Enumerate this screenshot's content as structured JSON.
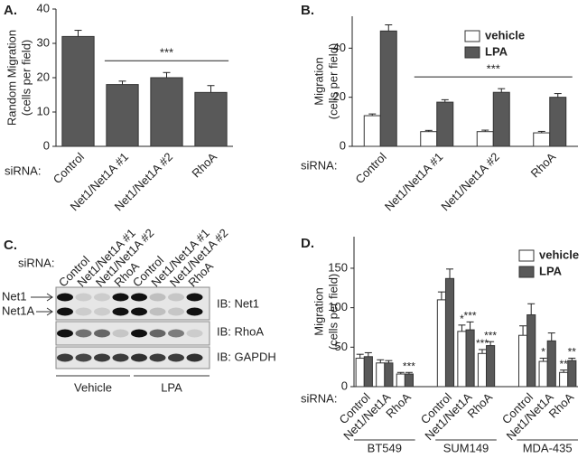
{
  "chart_data": [
    {
      "type": "bar",
      "panel_label": "A.",
      "y_label": [
        "Random Migration",
        "(cells per field)"
      ],
      "x_prefix": "siRNA:",
      "categories": [
        "Control",
        "Net1/Net1A #1",
        "Net1/Net1A #2",
        "RhoA"
      ],
      "values": [
        32,
        18,
        20,
        15.7
      ],
      "errors": [
        1.8,
        1,
        1.5,
        2
      ],
      "color": "#595959",
      "ylim": [
        0,
        40
      ],
      "yticks": [
        0,
        10,
        20,
        30,
        40
      ],
      "annotation": "***"
    },
    {
      "type": "bar",
      "panel_label": "B.",
      "y_label": [
        "Migration",
        "(cells per field)"
      ],
      "x_prefix": "siRNA:",
      "categories": [
        "Control",
        "Net1/Net1A #1",
        "Net1/Net1A #2",
        "RhoA"
      ],
      "series": [
        {
          "name": "vehicle",
          "color": "#ffffff",
          "values": [
            12.5,
            6,
            6,
            5.5
          ],
          "errors": [
            0.7,
            0.5,
            0.6,
            0.6
          ]
        },
        {
          "name": "LPA",
          "color": "#595959",
          "values": [
            47,
            18,
            22,
            20
          ],
          "errors": [
            2.5,
            1,
            1.5,
            1.5
          ]
        }
      ],
      "ylim": [
        0,
        53
      ],
      "yticks": [
        0,
        20,
        40
      ],
      "annotation": "***",
      "legend": "upper right"
    },
    {
      "type": "bar",
      "panel_label": "D.",
      "y_label": [
        "Migration",
        "(cells per field)"
      ],
      "x_prefix": "siRNA:",
      "categories": [
        "Control",
        "Net1/Net1A",
        "RhoA",
        "Control",
        "Net1/Net1A",
        "RhoA",
        "Control",
        "Net1/Net1A",
        "RhoA"
      ],
      "groups": [
        "BT549",
        "SUM149",
        "MDA-435"
      ],
      "series": [
        {
          "name": "vehicle",
          "color": "#ffffff",
          "values": [
            36,
            30,
            16,
            110,
            70,
            42,
            65,
            32,
            18
          ],
          "errors": [
            5,
            4,
            2,
            10,
            8,
            5,
            12,
            4,
            3
          ],
          "significance": [
            null,
            null,
            null,
            null,
            "*",
            "***",
            null,
            "*",
            "**"
          ]
        },
        {
          "name": "LPA",
          "color": "#595959",
          "values": [
            38,
            30,
            16,
            137,
            72,
            52,
            91,
            58,
            33
          ],
          "errors": [
            5,
            3,
            2,
            12,
            10,
            5,
            14,
            10,
            3
          ],
          "significance": [
            null,
            null,
            "***",
            null,
            "***",
            "***",
            null,
            null,
            "**"
          ]
        }
      ],
      "ylim": [
        0,
        190
      ],
      "yticks": [
        0,
        50,
        100,
        150
      ],
      "legend": "upper right"
    }
  ],
  "blot": {
    "panel_label": "C.",
    "x_prefix": "siRNA:",
    "lanes": [
      "Control",
      "Net1/Net1A #1",
      "Net1/Net1A #2",
      "RhoA",
      "Control",
      "Net1/Net1A #1",
      "Net1/Net1A #2",
      "RhoA"
    ],
    "band_labels": [
      "Net1",
      "Net1A"
    ],
    "blots": [
      "IB: Net1",
      "IB: RhoA",
      "IB: GAPDH"
    ],
    "groups": [
      "Vehicle",
      "LPA"
    ]
  }
}
